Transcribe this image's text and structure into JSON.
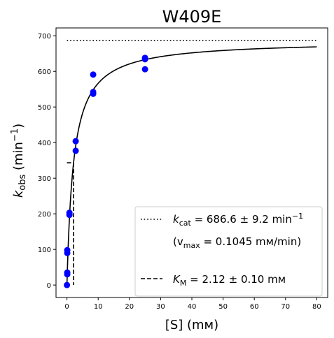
{
  "chart_data": {
    "type": "scatter",
    "title": "W409E",
    "xlabel": "[S] (mм)",
    "ylabel_main": "k",
    "ylabel_sub": "obs",
    "ylabel_unit_pre": " (min",
    "ylabel_unit_sup": "−1",
    "ylabel_unit_post": ")",
    "xlim": [
      -3.5,
      83.5
    ],
    "ylim": [
      -35,
      722
    ],
    "x_ticks": [
      0,
      10,
      20,
      30,
      40,
      50,
      60,
      70,
      80
    ],
    "y_ticks": [
      0,
      100,
      200,
      300,
      400,
      500,
      600,
      700
    ],
    "grid": false,
    "legend_placement": "lower-right",
    "colors": {
      "points": "#0000ff",
      "lines": "#000000"
    },
    "kcat": 686.6,
    "km": 2.12,
    "fit_x_range": [
      0,
      80
    ],
    "points": [
      {
        "x": 0.0,
        "y": 0
      },
      {
        "x": 0.1,
        "y": 30
      },
      {
        "x": 0.1,
        "y": 35
      },
      {
        "x": 0.1,
        "y": 90
      },
      {
        "x": 0.1,
        "y": 98
      },
      {
        "x": 0.8,
        "y": 197
      },
      {
        "x": 0.8,
        "y": 203
      },
      {
        "x": 2.8,
        "y": 377
      },
      {
        "x": 2.8,
        "y": 404
      },
      {
        "x": 8.4,
        "y": 537
      },
      {
        "x": 8.4,
        "y": 542
      },
      {
        "x": 8.4,
        "y": 591
      },
      {
        "x": 25.0,
        "y": 606
      },
      {
        "x": 25.0,
        "y": 634
      },
      {
        "x": 25.0,
        "y": 638
      }
    ],
    "legend": {
      "kcat_symbol": "k",
      "kcat_sub": "cat",
      "kcat_text": " = 686.6 ± 9.2 min",
      "kcat_sup": "−1",
      "vmax_pre": "(v",
      "vmax_sub": "max",
      "vmax_text": " = 0.1045 mм/min)",
      "km_symbol": "K",
      "km_sub": "M",
      "km_text": " = 2.12 ± 0.10 mм"
    }
  }
}
